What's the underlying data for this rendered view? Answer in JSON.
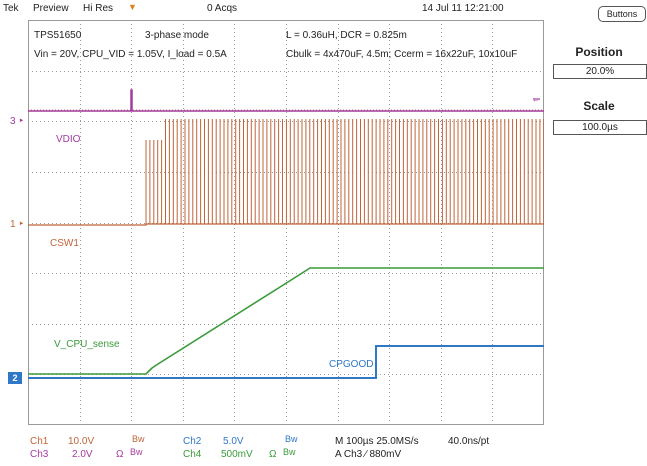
{
  "topbar": {
    "brand": "Tek",
    "mode": "Preview",
    "acq_mode": "Hi Res",
    "acq_count": "0 Acqs",
    "datetime": "14 Jul 11 12:21:00"
  },
  "panel": {
    "buttons_label": "Buttons",
    "position_title": "Position",
    "position_value": "20.0%",
    "scale_title": "Scale",
    "scale_value": "100.0µs"
  },
  "annotations": {
    "device": "TPS51650",
    "phase": "3-phase mode",
    "conditions": "Vin = 20V, CPU_VID = 1.05V, I_load = 0.5A",
    "inductor": "L = 0.36uH, DCR = 0.825m",
    "caps": "Cbulk = 4x470uF, 4.5m;  Ccerm = 16x22uF, 10x10uF"
  },
  "traces": {
    "vdio": "VDIO",
    "csw1": "CSW1",
    "vcpu": "V_CPU_sense",
    "cpgood": "CPGOOD"
  },
  "markers": {
    "ch3": "3",
    "ch1": "1",
    "ch2": "2"
  },
  "bottom": {
    "ch1_label": "Ch1",
    "ch1_scale": "10.0V",
    "ch1_bw": "Bw",
    "ch2_label": "Ch2",
    "ch2_scale": "5.0V",
    "ch2_bw": "Bw",
    "ch3_label": "Ch3",
    "ch3_scale": "2.0V",
    "ch3_ohm": "Ω",
    "ch3_bw": "Bw",
    "ch4_label": "Ch4",
    "ch4_scale": "500mV",
    "ch4_ohm": "Ω",
    "ch4_bw": "Bw",
    "timebase": "M 100µs 25.0MS/s",
    "resolution": "40.0ns/pt",
    "trigger": "A  Ch3  ∕  880mV"
  },
  "colors": {
    "ch1": "#c0643a",
    "ch2": "#2f78c8",
    "ch3": "#a33a9e",
    "ch4": "#3a9a3a"
  }
}
